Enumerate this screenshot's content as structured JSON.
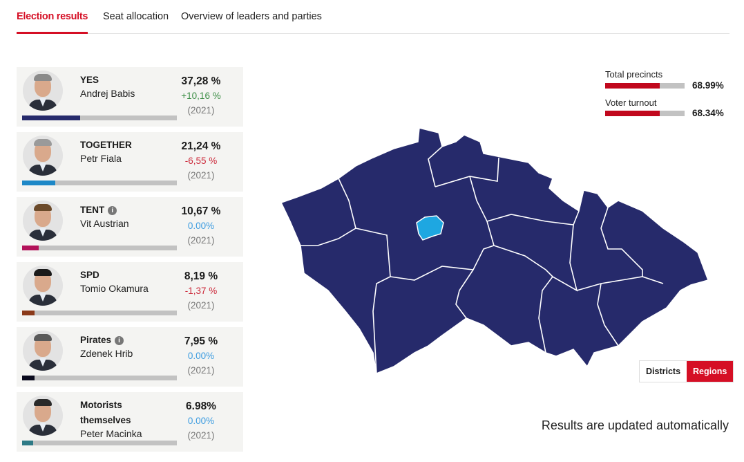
{
  "tabs": [
    {
      "label": "Election results",
      "active": true
    },
    {
      "label": "Seat allocation"
    },
    {
      "label": "Overview of leaders and parties"
    }
  ],
  "parties": [
    {
      "party": "YES",
      "leader": "Andrej Babis",
      "share": "37,28 %",
      "share_value": 37.28,
      "change": "+10,16 %",
      "change_type": "pos",
      "year": "(2021)",
      "color": "#262a6b",
      "info": false,
      "hair": "#8a8a8a"
    },
    {
      "party": "TOGETHER",
      "leader": "Petr Fiala",
      "share": "21,24 %",
      "share_value": 21.24,
      "change": "-6,55 %",
      "change_type": "neg",
      "year": "(2021)",
      "color": "#1e88c7",
      "info": false,
      "hair": "#9a9a9a"
    },
    {
      "party": "TENT",
      "leader": "Vit Austrian",
      "share": "10,67 %",
      "share_value": 10.67,
      "change": "0.00%",
      "change_type": "zero",
      "year": "(2021)",
      "color": "#b3135a",
      "info": true,
      "hair": "#6b4a2a"
    },
    {
      "party": "SPD",
      "leader": "Tomio Okamura",
      "share": "8,19 %",
      "share_value": 8.19,
      "change": "-1,37 %",
      "change_type": "neg",
      "year": "(2021)",
      "color": "#8b3a1a",
      "info": false,
      "hair": "#1a1a1a"
    },
    {
      "party": "Pirates",
      "leader": "Zdenek Hrib",
      "share": "7,95 %",
      "share_value": 7.95,
      "change": "0.00%",
      "change_type": "zero",
      "year": "(2021)",
      "color": "#0b0b1e",
      "info": true,
      "hair": "#5a5a5a"
    },
    {
      "party": "Motorists themselves",
      "leader": "Peter Macinka",
      "share": "6.98%",
      "share_value": 6.98,
      "change": "0.00%",
      "change_type": "zero",
      "year": "(2021)",
      "color": "#2e7a86",
      "info": false,
      "hair": "#2a2a2a"
    }
  ],
  "stats": [
    {
      "label": "Total precincts",
      "value": "68.99%",
      "fraction": 0.6899
    },
    {
      "label": "Voter turnout",
      "value": "68.34%",
      "fraction": 0.6834
    }
  ],
  "map": {
    "fill": "#262a6b",
    "highlight": "#1ea7e1"
  },
  "toggle": {
    "districts": "Districts",
    "regions": "Regions",
    "active": "Regions"
  },
  "note": "Results are updated automatically"
}
